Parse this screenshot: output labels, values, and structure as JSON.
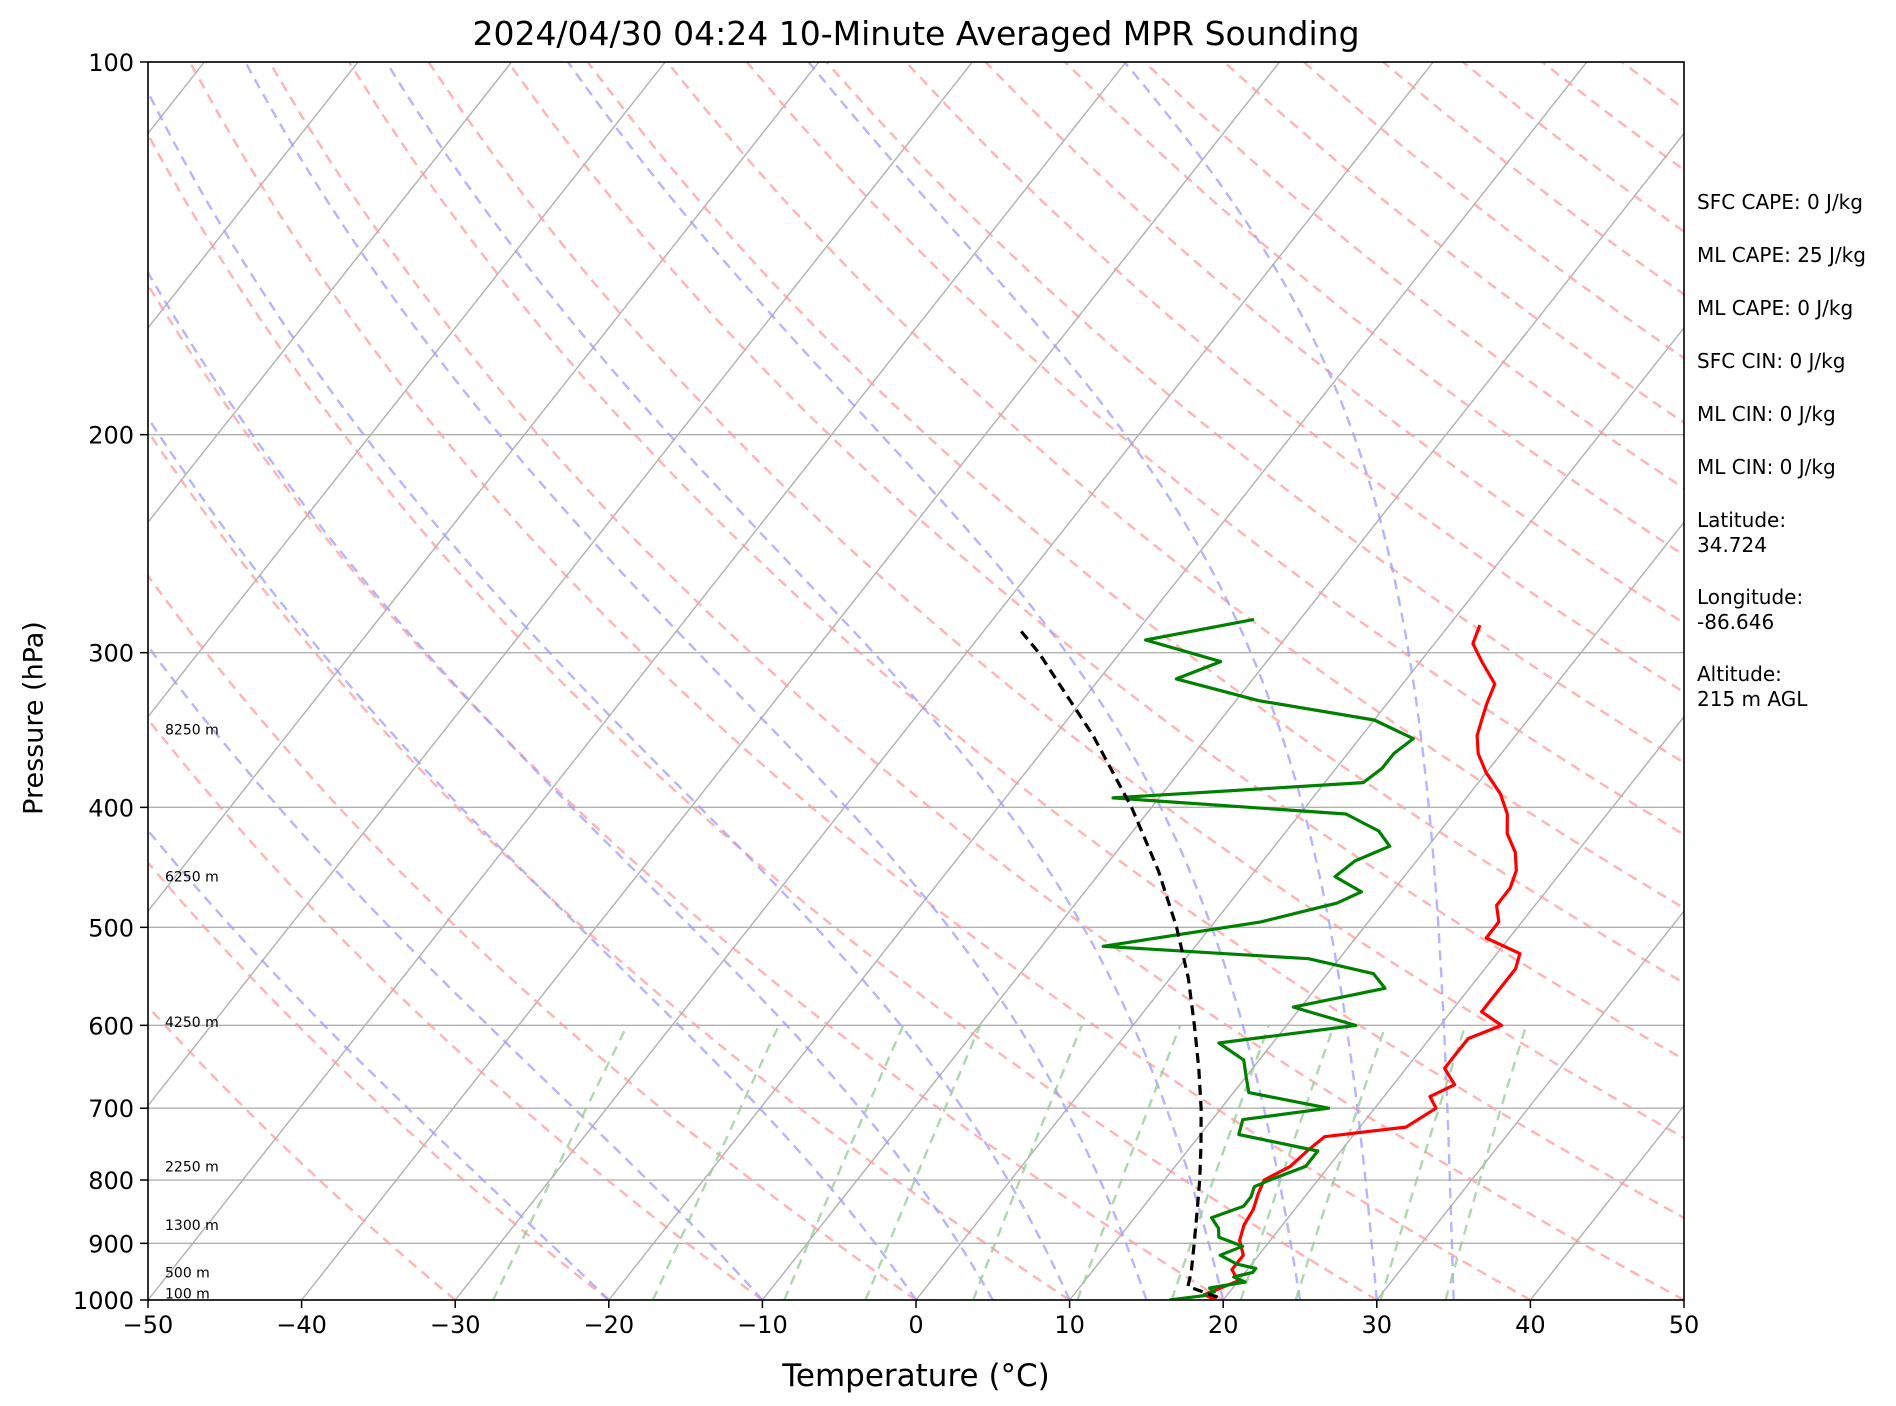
{
  "chart_data": {
    "type": "line",
    "title": "2024/04/30 04:24 10-Minute Averaged MPR Sounding",
    "xlabel": "Temperature (°C)",
    "ylabel": "Pressure (hPa)",
    "xlim": [
      -50,
      50
    ],
    "ylim": [
      1000,
      100
    ],
    "y_scale": "log",
    "grid": true,
    "x_ticks": [
      "−50",
      "−40",
      "−30",
      "−20",
      "−10",
      "0",
      "10",
      "20",
      "30",
      "40",
      "50"
    ],
    "x_tick_values": [
      -50,
      -40,
      -30,
      -20,
      -10,
      0,
      10,
      20,
      30,
      40,
      50
    ],
    "y_ticks": [
      "100",
      "200",
      "300",
      "400",
      "500",
      "600",
      "700",
      "800",
      "900",
      "1000"
    ],
    "y_tick_values": [
      100,
      200,
      300,
      400,
      500,
      600,
      700,
      800,
      900,
      1000
    ],
    "height_labels": [
      {
        "text": "100 m",
        "pressure": 988
      },
      {
        "text": "500 m",
        "pressure": 950
      },
      {
        "text": "1300 m",
        "pressure": 870
      },
      {
        "text": "2250 m",
        "pressure": 780
      },
      {
        "text": "4250 m",
        "pressure": 596
      },
      {
        "text": "6250 m",
        "pressure": 455
      },
      {
        "text": "8250 m",
        "pressure": 346
      }
    ],
    "series": [
      {
        "color": "#ff0000",
        "points": [
          [
            1000,
            19.5
          ],
          [
            990,
            18.5
          ],
          [
            965,
            20.0
          ],
          [
            945,
            19.0
          ],
          [
            920,
            19.0
          ],
          [
            895,
            18.0
          ],
          [
            870,
            17.5
          ],
          [
            845,
            17.3
          ],
          [
            820,
            16.8
          ],
          [
            800,
            16.5
          ],
          [
            780,
            17.5
          ],
          [
            758,
            17.8
          ],
          [
            738,
            18.2
          ],
          [
            725,
            23.0
          ],
          [
            700,
            24.0
          ],
          [
            685,
            23.0
          ],
          [
            670,
            24.0
          ],
          [
            650,
            22.5
          ],
          [
            635,
            22.5
          ],
          [
            615,
            22.5
          ],
          [
            600,
            24.0
          ],
          [
            585,
            22.0
          ],
          [
            560,
            22.0
          ],
          [
            540,
            22.0
          ],
          [
            525,
            21.5
          ],
          [
            510,
            18.5
          ],
          [
            495,
            18.5
          ],
          [
            480,
            17.5
          ],
          [
            465,
            17.5
          ],
          [
            450,
            17.0
          ],
          [
            435,
            16.0
          ],
          [
            420,
            14.5
          ],
          [
            405,
            13.5
          ],
          [
            390,
            12.0
          ],
          [
            375,
            10.0
          ],
          [
            362,
            8.5
          ],
          [
            350,
            7.5
          ],
          [
            340,
            7.0
          ],
          [
            330,
            6.5
          ],
          [
            318,
            6.0
          ],
          [
            305,
            4.0
          ],
          [
            295,
            2.5
          ],
          [
            285,
            2.0
          ]
        ]
      },
      {
        "color": "#008000",
        "points": [
          [
            1000,
            16.5
          ],
          [
            992,
            18.5
          ],
          [
            985,
            19.0
          ],
          [
            978,
            18.5
          ],
          [
            967,
            20.5
          ],
          [
            958,
            19.5
          ],
          [
            950,
            20.5
          ],
          [
            943,
            20.5
          ],
          [
            935,
            19.0
          ],
          [
            920,
            17.5
          ],
          [
            905,
            18.5
          ],
          [
            890,
            16.5
          ],
          [
            875,
            16.0
          ],
          [
            858,
            15.0
          ],
          [
            840,
            16.5
          ],
          [
            825,
            16.5
          ],
          [
            810,
            16.2
          ],
          [
            798,
            17.0
          ],
          [
            780,
            18.5
          ],
          [
            758,
            18.5
          ],
          [
            735,
            12.5
          ],
          [
            715,
            12.0
          ],
          [
            700,
            17.0
          ],
          [
            680,
            11.0
          ],
          [
            660,
            10.0
          ],
          [
            640,
            9.0
          ],
          [
            620,
            6.5
          ],
          [
            600,
            14.5
          ],
          [
            580,
            9.5
          ],
          [
            560,
            14.5
          ],
          [
            545,
            13.0
          ],
          [
            530,
            8.0
          ],
          [
            518,
            -6.0
          ],
          [
            495,
            3.0
          ],
          [
            478,
            7.0
          ],
          [
            468,
            8.0
          ],
          [
            455,
            5.5
          ],
          [
            442,
            6.0
          ],
          [
            430,
            7.5
          ],
          [
            418,
            6.0
          ],
          [
            405,
            3.0
          ],
          [
            393,
            -13.0
          ],
          [
            382,
            2.5
          ],
          [
            372,
            3.0
          ],
          [
            362,
            3.0
          ],
          [
            352,
            3.5
          ],
          [
            340,
            0.0
          ],
          [
            328,
            -8.5
          ],
          [
            315,
            -15.0
          ],
          [
            305,
            -13.0
          ],
          [
            293,
            -19.0
          ],
          [
            282,
            -13.0
          ]
        ]
      },
      {
        "color": "#000000",
        "dashed": true,
        "points": [
          [
            995,
            19.5
          ],
          [
            975,
            17.0
          ],
          [
            950,
            16.5
          ],
          [
            900,
            15.2
          ],
          [
            850,
            13.8
          ],
          [
            800,
            12.3
          ],
          [
            750,
            10.6
          ],
          [
            700,
            8.7
          ],
          [
            650,
            6.5
          ],
          [
            600,
            4.0
          ],
          [
            550,
            1.2
          ],
          [
            500,
            -2.2
          ],
          [
            450,
            -6.3
          ],
          [
            400,
            -11.3
          ],
          [
            350,
            -17.5
          ],
          [
            300,
            -25.3
          ],
          [
            287,
            -27.8
          ]
        ]
      }
    ]
  },
  "side_info": {
    "sfc_cape": "SFC CAPE: 0 J/kg",
    "ml_cape_1": "ML CAPE: 25 J/kg",
    "ml_cape_2": "ML CAPE: 0 J/kg",
    "sfc_cin": "SFC CIN: 0 J/kg",
    "ml_cin_1": "ML CIN: 0 J/kg",
    "ml_cin_2": "ML CIN: 0 J/kg",
    "latitude": "Latitude:\n34.724",
    "longitude": "Longitude:\n-86.646",
    "altitude": "Altitude:\n215 m AGL"
  },
  "colors": {
    "isotherm": "#b0b0b0",
    "dry_adiabat": "#ff9a9a",
    "moist_adiabat": "#9c9cff",
    "mixing_ratio": "#9ccc9c"
  }
}
